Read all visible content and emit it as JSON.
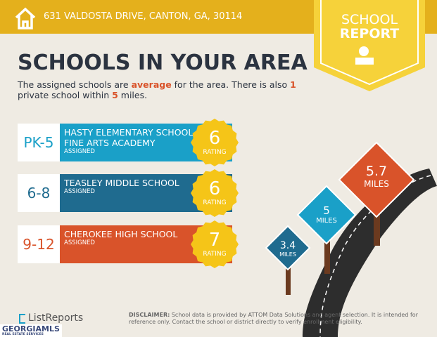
{
  "header": {
    "address": "631 VALDOSTA DRIVE, CANTON, GA, 30114",
    "badge": [
      "SCHOOL",
      "REPORT"
    ]
  },
  "title": "SCHOOLS IN YOUR AREA",
  "intro": {
    "parts": [
      "The assigned schools are ",
      "average",
      " for the area. There is also ",
      "1",
      " private school within ",
      "5",
      " miles."
    ]
  },
  "schools": [
    {
      "grades": "PK-5",
      "name": "HASTY ELEMENTARY SCHOOL FINE ARTS ACADEMY",
      "status": "ASSIGNED",
      "rating": 6,
      "rating_label": "RATING"
    },
    {
      "grades": "6-8",
      "name": "TEASLEY MIDDLE SCHOOL",
      "status": "ASSIGNED",
      "rating": 6,
      "rating_label": "RATING"
    },
    {
      "grades": "9-12",
      "name": "CHEROKEE HIGH SCHOOL",
      "status": "ASSIGNED",
      "rating": 7,
      "rating_label": "RATING"
    }
  ],
  "distances": [
    {
      "value": 3.4,
      "unit": "MILES"
    },
    {
      "value": 5,
      "unit": "MILES"
    },
    {
      "value": 5.7,
      "unit": "MILES"
    }
  ],
  "footer": {
    "logo": "ListReports",
    "mls": "GEORGIAMLS",
    "mls_sub": "REAL ESTATE SERVICES",
    "disclaimer_label": "DISCLAIMER:",
    "disclaimer": " School data is provided by ATTOM Data Solutions and agent selection. It is intended for reference only. Contact the school or district directly to verify enrollment eligibility."
  }
}
